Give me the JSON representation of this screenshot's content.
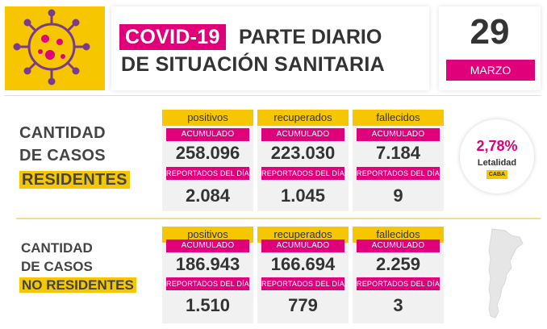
{
  "header": {
    "covid_tag": "COVID-19",
    "title_line1": "PARTE DIARIO",
    "title_line2": "DE SITUACIÓN SANITARIA",
    "day": "29",
    "month": "MARZO"
  },
  "colors": {
    "yellow": "#f6c700",
    "magenta": "#e0007a",
    "text": "#333333"
  },
  "icons": {
    "logo": "virus-icon",
    "map": "argentina-map-icon"
  },
  "residentes": {
    "label_line1": "CANTIDAD",
    "label_line2": "DE CASOS",
    "label_line3": "RESIDENTES",
    "cards": [
      {
        "title": "positivos",
        "acumulado_label": "ACUMULADO",
        "acumulado": "258.096",
        "dia_label": "REPORTADOS DEL DÍA",
        "dia": "2.084"
      },
      {
        "title": "recuperados",
        "acumulado_label": "ACUMULADO",
        "acumulado": "223.030",
        "dia_label": "REPORTADOS DEL DÍA",
        "dia": "1.045"
      },
      {
        "title": "fallecidos",
        "acumulado_label": "ACUMULADO",
        "acumulado": "7.184",
        "dia_label": "REPORTADOS DEL DÍA",
        "dia": "9"
      }
    ],
    "letalidad": {
      "value": "2,78%",
      "label": "Letalidad",
      "badge": "CABA"
    }
  },
  "no_residentes": {
    "label_line1": "CANTIDAD",
    "label_line2": "DE CASOS",
    "label_line3": "NO RESIDENTES",
    "cards": [
      {
        "title": "positivos",
        "acumulado_label": "ACUMULADO",
        "acumulado": "186.943",
        "dia_label": "REPORTADOS DEL DÍA",
        "dia": "1.510"
      },
      {
        "title": "recuperados",
        "acumulado_label": "ACUMULADO",
        "acumulado": "166.694",
        "dia_label": "REPORTADOS DEL DÍA",
        "dia": "779"
      },
      {
        "title": "fallecidos",
        "acumulado_label": "ACUMULADO",
        "acumulado": "2.259",
        "dia_label": "REPORTADOS DEL DÍA",
        "dia": "3"
      }
    ]
  }
}
